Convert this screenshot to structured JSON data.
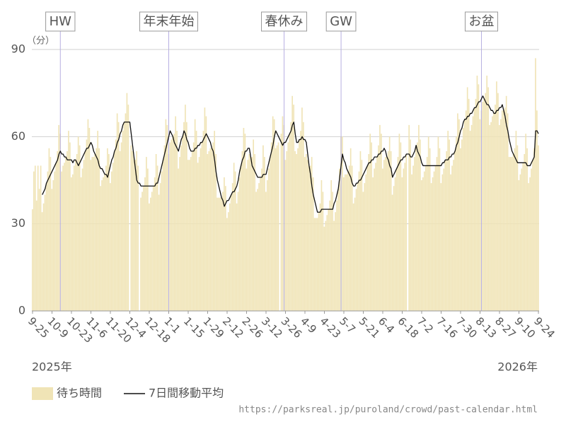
{
  "chart_data": {
    "type": "bar",
    "unit_label": "（分）",
    "ylim": [
      0,
      90
    ],
    "yticks": [
      0,
      30,
      60,
      90
    ],
    "grid": true,
    "categories": [
      "9-25",
      null,
      null,
      null,
      null,
      null,
      null,
      null,
      null,
      null,
      null,
      null,
      null,
      null,
      "10-9",
      null,
      null,
      null,
      null,
      null,
      null,
      null,
      null,
      null,
      null,
      null,
      null,
      null,
      "10-23",
      null,
      null,
      null,
      null,
      null,
      null,
      null,
      null,
      null,
      null,
      null,
      null,
      null,
      "11-6",
      null,
      null,
      null,
      null,
      null,
      null,
      null,
      null,
      null,
      null,
      null,
      null,
      null,
      "11-20",
      null,
      null,
      null,
      null,
      null,
      null,
      null,
      null,
      null,
      null,
      null,
      null,
      null,
      "12-4",
      null,
      null,
      null,
      null,
      null,
      null,
      null,
      null,
      null,
      null,
      null,
      null,
      null,
      "12-18",
      null,
      null,
      null,
      null,
      null,
      null,
      null,
      null,
      null,
      null,
      null,
      null,
      null,
      "1-1",
      null,
      null,
      null,
      null,
      null,
      null,
      null,
      null,
      null,
      null,
      null,
      null,
      null,
      "1-15",
      null,
      null,
      null,
      null,
      null,
      null,
      null,
      null,
      null,
      null,
      null,
      null,
      null,
      "1-29",
      null,
      null,
      null,
      null,
      null,
      null,
      null,
      null,
      null,
      null,
      null,
      null,
      null,
      "2-12",
      null,
      null,
      null,
      null,
      null,
      null,
      null,
      null,
      null,
      null,
      null,
      null,
      null,
      "2-26",
      null,
      null,
      null,
      null,
      null,
      null,
      null,
      null,
      null,
      null,
      null,
      null,
      null,
      "3-12",
      null,
      null,
      null,
      null,
      null,
      null,
      null,
      null,
      null,
      null,
      null,
      null,
      null,
      "3-26",
      null,
      null,
      null,
      null,
      null,
      null,
      null,
      null,
      null,
      null,
      null,
      null,
      null,
      "4-9",
      null,
      null,
      null,
      null,
      null,
      null,
      null,
      null,
      null,
      null,
      null,
      null,
      null,
      "4-23",
      null,
      null,
      null,
      null,
      null,
      null,
      null,
      null,
      null,
      null,
      null,
      null,
      null,
      "5-7",
      null,
      null,
      null,
      null,
      null,
      null,
      null,
      null,
      null,
      null,
      null,
      null,
      null,
      "5-21",
      null,
      null,
      null,
      null,
      null,
      null,
      null,
      null,
      null,
      null,
      null,
      null,
      null,
      "6-4",
      null,
      null,
      null,
      null,
      null,
      null,
      null,
      null,
      null,
      null,
      null,
      null,
      null,
      "6-18",
      null,
      null,
      null,
      null,
      null,
      null,
      null,
      null,
      null,
      null,
      null,
      null,
      null,
      "7-2",
      null,
      null,
      null,
      null,
      null,
      null,
      null,
      null,
      null,
      null,
      null,
      null,
      null,
      "7-16",
      null,
      null,
      null,
      null,
      null,
      null,
      null,
      null,
      null,
      null,
      null,
      null,
      null,
      "7-30",
      null,
      null,
      null,
      null,
      null,
      null,
      null,
      null,
      null,
      null,
      null,
      null,
      null,
      "8-13",
      null,
      null,
      null,
      null,
      null,
      null,
      null,
      null,
      null,
      null,
      null,
      null,
      null,
      "8-27",
      null,
      null,
      null,
      null,
      null,
      null,
      null,
      null,
      null,
      null,
      null,
      null,
      null,
      "9-10",
      null,
      null,
      null,
      null,
      null,
      null,
      null,
      null,
      null,
      null,
      null,
      null,
      null,
      "9-24"
    ],
    "series": [
      {
        "name": "待ち時間",
        "color": "#f0e4b6",
        "values": [
          35,
          48,
          50,
          38,
          50,
          42,
          50,
          34,
          37,
          40,
          44,
          48,
          56,
          53,
          42,
          45,
          48,
          51,
          55,
          64,
          61,
          48,
          50,
          51,
          53,
          55,
          62,
          58,
          46,
          47,
          50,
          52,
          54,
          60,
          57,
          46,
          49,
          52,
          55,
          59,
          66,
          63,
          52,
          53,
          53,
          54,
          56,
          62,
          56,
          43,
          45,
          46,
          47,
          50,
          56,
          54,
          44,
          48,
          51,
          55,
          59,
          68,
          65,
          55,
          58,
          62,
          65,
          68,
          75,
          71,
          0,
          57,
          55,
          53,
          52,
          55,
          50,
          0,
          39,
          41,
          43,
          46,
          53,
          49,
          37,
          39,
          41,
          43,
          46,
          54,
          50,
          40,
          44,
          48,
          52,
          57,
          66,
          64,
          54,
          58,
          59,
          60,
          61,
          67,
          62,
          49,
          53,
          57,
          60,
          65,
          71,
          65,
          52,
          52,
          53,
          55,
          58,
          66,
          62,
          51,
          53,
          56,
          58,
          62,
          70,
          67,
          54,
          55,
          56,
          56,
          58,
          62,
          54,
          39,
          39,
          39,
          39,
          41,
          46,
          43,
          32,
          34,
          37,
          40,
          44,
          51,
          48,
          37,
          41,
          46,
          50,
          55,
          63,
          61,
          49,
          52,
          54,
          53,
          53,
          59,
          54,
          41,
          42,
          44,
          46,
          49,
          57,
          53,
          41,
          45,
          49,
          53,
          58,
          67,
          66,
          56,
          57,
          58,
          0,
          61,
          67,
          64,
          52,
          55,
          58,
          61,
          65,
          74,
          71,
          55,
          54,
          56,
          59,
          62,
          70,
          65,
          53,
          54,
          52,
          50,
          50,
          53,
          46,
          32,
          32,
          32,
          34,
          37,
          45,
          41,
          29,
          31,
          33,
          35,
          38,
          45,
          41,
          31,
          34,
          38,
          42,
          49,
          60,
          60,
          46,
          47,
          47,
          48,
          50,
          56,
          50,
          37,
          39,
          42,
          44,
          48,
          55,
          52,
          41,
          44,
          47,
          50,
          54,
          61,
          58,
          46,
          49,
          51,
          53,
          57,
          64,
          61,
          49,
          52,
          53,
          53,
          55,
          60,
          55,
          40,
          43,
          46,
          49,
          53,
          61,
          58,
          46,
          49,
          51,
          54,
          0,
          64,
          59,
          47,
          50,
          53,
          57,
          58,
          64,
          59,
          45,
          46,
          48,
          50,
          53,
          60,
          56,
          44,
          46,
          48,
          50,
          53,
          60,
          56,
          44,
          47,
          49,
          52,
          55,
          62,
          59,
          47,
          50,
          52,
          55,
          60,
          68,
          66,
          56,
          59,
          63,
          66,
          69,
          77,
          73,
          62,
          64,
          67,
          70,
          73,
          81,
          78,
          66,
          69,
          72,
          73,
          75,
          81,
          77,
          64,
          65,
          67,
          68,
          71,
          79,
          75,
          64,
          66,
          69,
          69,
          70,
          74,
          68,
          53,
          53,
          53,
          54,
          56,
          62,
          57,
          45,
          47,
          49,
          51,
          54,
          61,
          56,
          44,
          46,
          49,
          52,
          56,
          87,
          69,
          57
        ]
      },
      {
        "name": "7日間移動平均",
        "type": "line",
        "color": "#111111",
        "values": [
          null,
          null,
          null,
          null,
          null,
          null,
          null,
          40,
          41,
          42,
          44,
          45,
          46,
          47,
          48,
          49,
          50,
          51,
          52,
          54,
          55,
          54,
          54,
          53,
          53,
          52,
          52,
          52,
          52,
          51,
          52,
          52,
          51,
          50,
          51,
          52,
          53,
          54,
          55,
          56,
          56,
          57,
          58,
          57,
          55,
          54,
          53,
          52,
          50,
          49,
          49,
          48,
          47,
          47,
          46,
          48,
          50,
          52,
          53,
          55,
          56,
          58,
          59,
          61,
          62,
          64,
          65,
          65,
          65,
          65,
          65,
          61,
          57,
          53,
          49,
          45,
          44,
          44,
          43,
          43,
          43,
          43,
          43,
          43,
          43,
          43,
          43,
          43,
          43,
          44,
          44,
          46,
          48,
          50,
          52,
          54,
          56,
          58,
          60,
          62,
          61,
          60,
          58,
          57,
          56,
          55,
          57,
          59,
          60,
          62,
          61,
          59,
          58,
          56,
          55,
          55,
          55,
          56,
          56,
          57,
          57,
          58,
          58,
          59,
          60,
          61,
          60,
          59,
          58,
          56,
          55,
          52,
          48,
          45,
          43,
          41,
          39,
          38,
          36,
          37,
          38,
          38,
          39,
          40,
          41,
          41,
          42,
          43,
          45,
          48,
          50,
          52,
          53,
          55,
          55,
          56,
          56,
          53,
          50,
          49,
          48,
          47,
          46,
          46,
          46,
          46,
          47,
          47,
          47,
          49,
          51,
          53,
          55,
          57,
          60,
          62,
          61,
          60,
          59,
          58,
          57,
          58,
          58,
          59,
          60,
          61,
          62,
          64,
          65,
          61,
          58,
          58,
          59,
          59,
          60,
          59,
          59,
          58,
          54,
          50,
          47,
          43,
          40,
          38,
          36,
          34,
          34,
          34,
          35,
          35,
          35,
          35,
          35,
          35,
          35,
          35,
          35,
          37,
          38,
          40,
          42,
          46,
          50,
          54,
          52,
          51,
          49,
          48,
          47,
          46,
          44,
          43,
          43,
          44,
          44,
          45,
          45,
          46,
          47,
          48,
          49,
          50,
          51,
          51,
          52,
          52,
          53,
          53,
          53,
          54,
          54,
          55,
          55,
          56,
          55,
          53,
          52,
          50,
          49,
          46,
          47,
          48,
          49,
          50,
          51,
          52,
          52,
          53,
          53,
          54,
          54,
          54,
          53,
          53,
          54,
          55,
          57,
          55,
          54,
          53,
          51,
          50,
          50,
          50,
          50,
          50,
          50,
          50,
          50,
          50,
          50,
          50,
          50,
          50,
          50,
          51,
          51,
          52,
          52,
          52,
          53,
          53,
          54,
          54,
          55,
          57,
          58,
          60,
          62,
          63,
          65,
          66,
          66,
          67,
          67,
          68,
          68,
          69,
          70,
          70,
          71,
          72,
          72,
          73,
          74,
          73,
          72,
          71,
          71,
          70,
          69,
          69,
          68,
          68,
          69,
          69,
          70,
          70,
          71,
          69,
          67,
          64,
          62,
          59,
          57,
          55,
          54,
          53,
          52,
          51,
          51,
          51,
          51,
          51,
          51,
          51,
          50,
          50,
          50,
          51,
          52,
          53,
          62,
          62,
          61
        ]
      }
    ],
    "annotations": [
      {
        "text": "HW",
        "x": 20
      },
      {
        "text": "年末年始",
        "x": 98
      },
      {
        "text": "春休み",
        "x": 181
      },
      {
        "text": "GW",
        "x": 222
      },
      {
        "text": "お盆",
        "x": 323
      }
    ],
    "year_labels": [
      "2025年",
      "2026年"
    ],
    "source": "https://parksreal.jp/puroland/crowd/past-calendar.html"
  }
}
